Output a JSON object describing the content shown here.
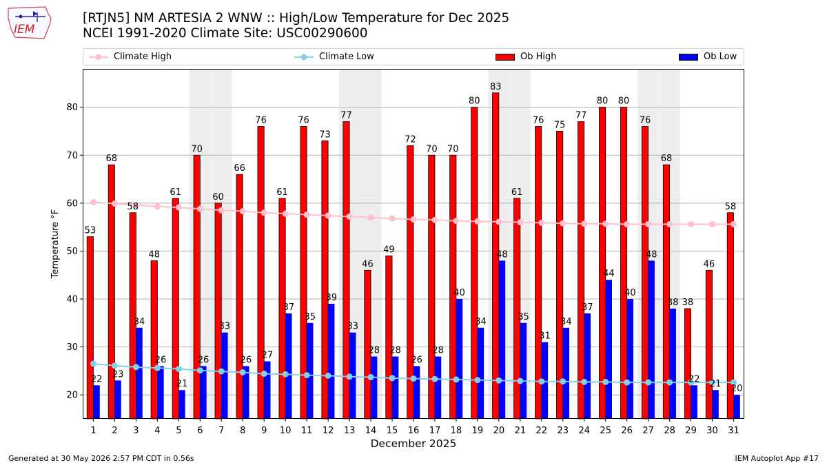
{
  "header": {
    "logo_text": "IEM",
    "title_line1": "[RTJN5] NM ARTESIA 2 WNW :: High/Low Temperature for Dec 2025",
    "title_line2": "NCEI 1991-2020 Climate Site: USC00290600"
  },
  "footer": {
    "generated": "Generated at 30 May 2026 2:57 PM CDT in 0.56s",
    "app": "IEM Autoplot App #17"
  },
  "colors": {
    "ob_high": "#ff0000",
    "ob_low": "#0000ff",
    "climate_high": "#ffc0cb",
    "climate_low": "#87ceeb",
    "weekend_band": "#eeeeee",
    "grid": "#b0b0b0"
  },
  "chart_data": {
    "type": "bar",
    "xlabel": "December 2025",
    "ylabel": "Temperature °F",
    "ylim": [
      15,
      88
    ],
    "yticks": [
      20,
      30,
      40,
      50,
      60,
      70,
      80
    ],
    "grid": "horizontal",
    "legend_position": "top",
    "categories": [
      "1",
      "2",
      "3",
      "4",
      "5",
      "6",
      "7",
      "8",
      "9",
      "10",
      "11",
      "12",
      "13",
      "14",
      "15",
      "16",
      "17",
      "18",
      "19",
      "20",
      "21",
      "22",
      "23",
      "24",
      "25",
      "26",
      "27",
      "28",
      "29",
      "30",
      "31"
    ],
    "shaded_days": [
      6,
      7,
      13,
      14,
      20,
      21,
      27,
      28
    ],
    "series": [
      {
        "name": "Ob High",
        "kind": "bar",
        "values": [
          53,
          68,
          58,
          48,
          61,
          70,
          60,
          66,
          76,
          61,
          76,
          73,
          77,
          46,
          49,
          72,
          70,
          70,
          80,
          83,
          61,
          76,
          75,
          77,
          80,
          80,
          76,
          68,
          38,
          46,
          58
        ]
      },
      {
        "name": "Ob Low",
        "kind": "bar",
        "values": [
          22,
          23,
          34,
          26,
          21,
          26,
          33,
          26,
          27,
          37,
          35,
          39,
          33,
          28,
          28,
          26,
          28,
          40,
          34,
          48,
          35,
          31,
          34,
          37,
          44,
          40,
          48,
          38,
          22,
          21,
          20
        ]
      },
      {
        "name": "Climate High",
        "kind": "line",
        "values": [
          60.2,
          59.9,
          59.6,
          59.3,
          59.1,
          58.8,
          58.5,
          58.3,
          58.0,
          57.8,
          57.6,
          57.4,
          57.2,
          57.0,
          56.8,
          56.6,
          56.5,
          56.3,
          56.2,
          56.1,
          56.0,
          55.9,
          55.8,
          55.7,
          55.7,
          55.6,
          55.6,
          55.6,
          55.6,
          55.6,
          55.6
        ]
      },
      {
        "name": "Climate Low",
        "kind": "line",
        "values": [
          26.5,
          26.1,
          25.8,
          25.6,
          25.4,
          25.1,
          24.9,
          24.7,
          24.4,
          24.3,
          24.1,
          24.0,
          23.8,
          23.7,
          23.5,
          23.4,
          23.3,
          23.2,
          23.1,
          23.0,
          22.9,
          22.8,
          22.8,
          22.7,
          22.7,
          22.6,
          22.6,
          22.6,
          22.6,
          22.6,
          22.6
        ]
      }
    ]
  }
}
